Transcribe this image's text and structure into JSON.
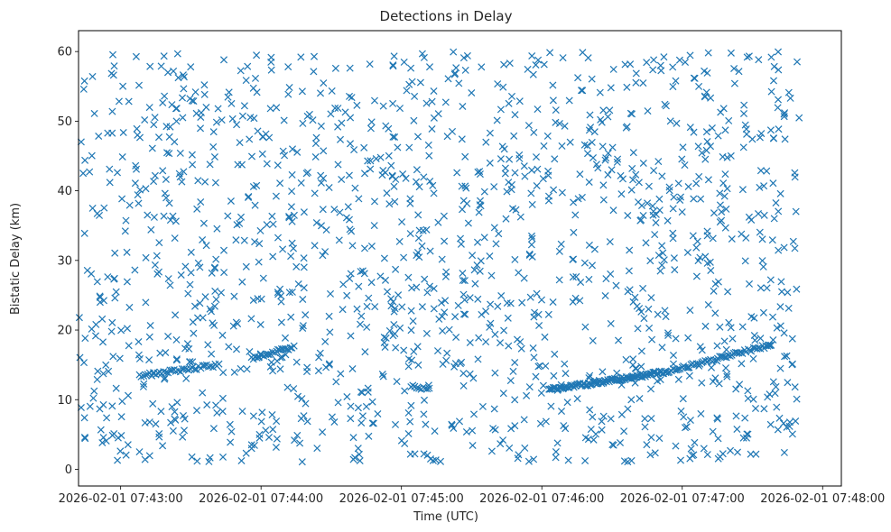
{
  "chart_data": {
    "type": "scatter",
    "title": "Detections in Delay",
    "xlabel": "Time (UTC)",
    "ylabel": "Bistatic Delay (km)",
    "x_ticks": [
      "2026-02-01 07:43:00",
      "2026-02-01 07:44:00",
      "2026-02-01 07:45:00",
      "2026-02-01 07:46:00",
      "2026-02-01 07:47:00",
      "2026-02-01 07:48:00"
    ],
    "y_ticks": [
      "0",
      "10",
      "20",
      "30",
      "40",
      "50",
      "60"
    ],
    "xlim": [
      "2026-02-01 07:42:42",
      "2026-02-01 07:48:08"
    ],
    "ylim": [
      -2.4,
      63.0
    ],
    "marker": "x",
    "color": "#1f77b4",
    "grid": false,
    "series": [
      {
        "tracks": [
          {
            "from": [
              "2026-02-01 07:43:08",
              13.4
            ],
            "to": [
              "2026-02-01 07:43:42",
              15.0
            ],
            "count": 40
          },
          {
            "from": [
              "2026-02-01 07:43:56",
              15.9
            ],
            "to": [
              "2026-02-01 07:44:14",
              17.6
            ],
            "count": 25
          },
          {
            "from": [
              "2026-02-01 07:46:03",
              11.4
            ],
            "to": [
              "2026-02-01 07:46:53",
              14.0
            ],
            "count": 110
          },
          {
            "from": [
              "2026-02-01 07:46:53",
              14.0
            ],
            "to": [
              "2026-02-01 07:47:38",
              17.9
            ],
            "count": 60
          },
          {
            "from": [
              "2026-02-01 07:45:04",
              12.0
            ],
            "to": [
              "2026-02-01 07:45:12",
              11.4
            ],
            "count": 10
          }
        ],
        "clutter": {
          "time_range": [
            "2026-02-01 07:42:42",
            "2026-02-01 07:47:50"
          ],
          "delay_range": [
            1,
            60
          ],
          "count": 1450
        }
      }
    ]
  }
}
